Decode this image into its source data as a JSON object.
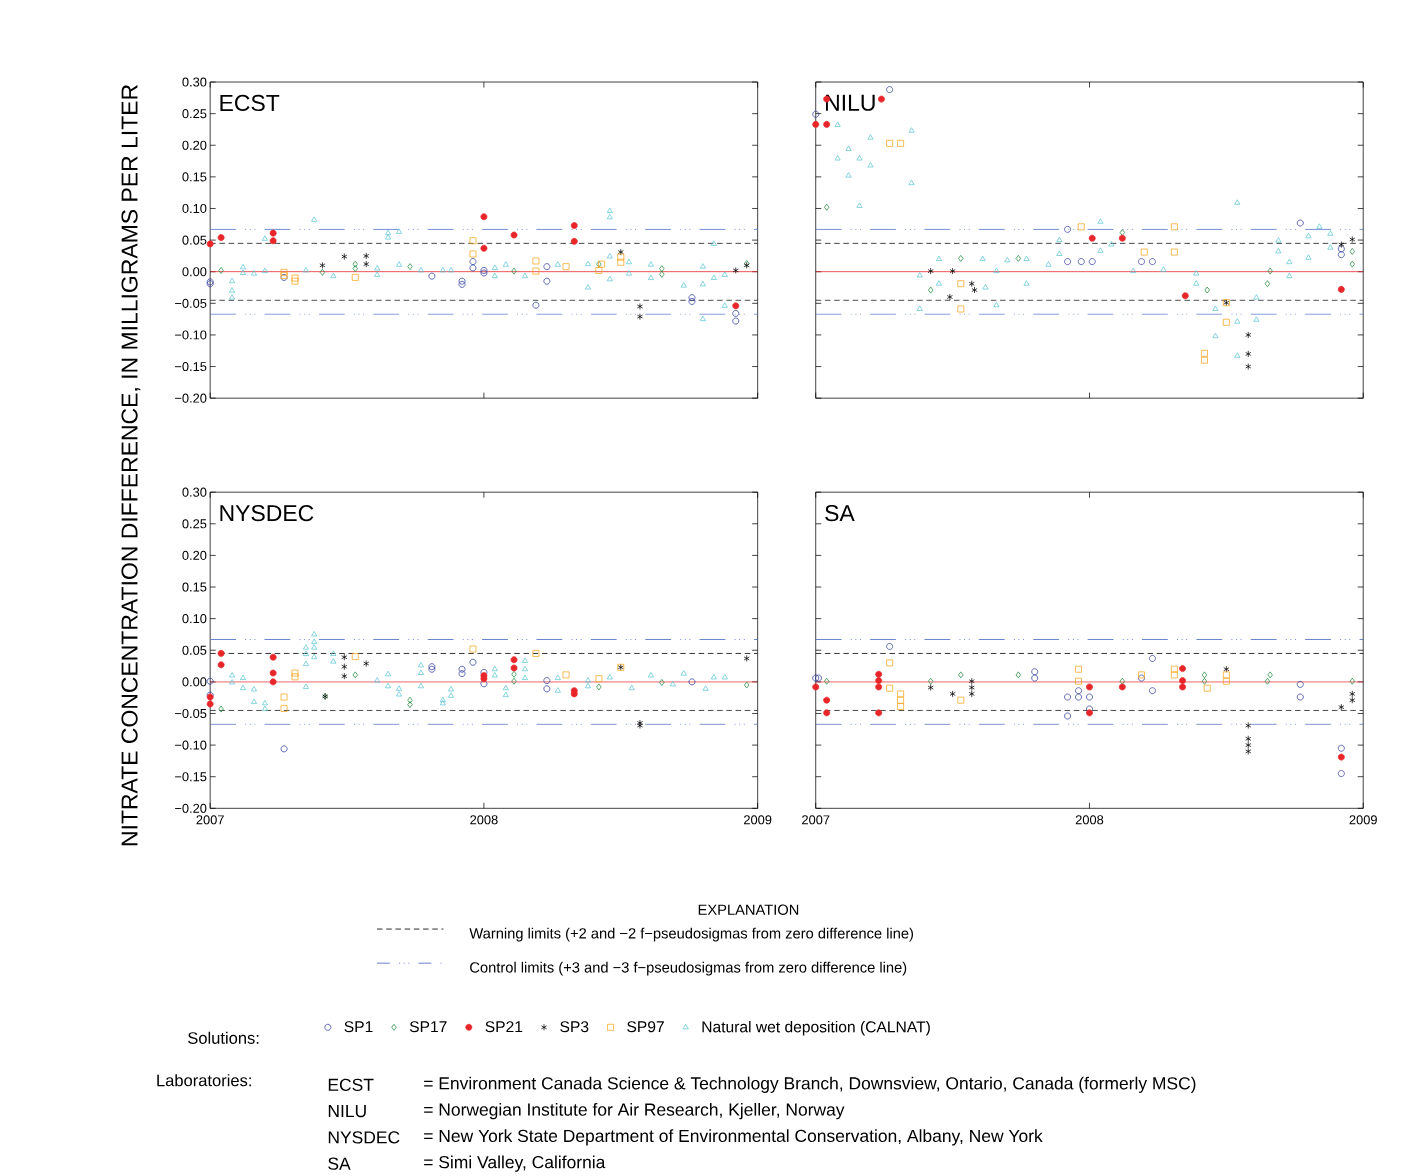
{
  "chart_data": [
    {
      "type": "scatter",
      "title": "ECST",
      "ylabel": "NITRATE CONCENTRATION DIFFERENCE, IN MILLIGRAMS PER LITER",
      "legend": "bottom",
      "legend_title": "Solutions:",
      "tick_labels": "y",
      "xlim": [
        2007,
        2009
      ],
      "xticks": [
        2007,
        2008,
        2009
      ],
      "ylim": [
        -0.2,
        0.3
      ],
      "yticks": [
        {
          "value": -0.2,
          "label": "−0.20"
        },
        {
          "value": -0.15,
          "label": "−0.15"
        },
        {
          "value": -0.1,
          "label": "−0.10"
        },
        {
          "value": -0.05,
          "label": "−0.05"
        },
        {
          "value": 0,
          "label": "0.00"
        },
        {
          "value": 0.05,
          "label": "0.05"
        },
        {
          "value": 0.1,
          "label": "0.10"
        },
        {
          "value": 0.15,
          "label": "0.15"
        },
        {
          "value": 0.2,
          "label": "0.20"
        },
        {
          "value": 0.25,
          "label": "0.25"
        },
        {
          "value": 0.3,
          "label": "0.30"
        }
      ],
      "ref_lines": [
        {
          "axis": "y",
          "value": 0,
          "color": "#e8262a",
          "line_style": "solid"
        },
        {
          "axis": "y",
          "value": 0.045,
          "color": "#000000",
          "line_style": "dashed"
        },
        {
          "axis": "y",
          "value": -0.045,
          "color": "#000000",
          "line_style": "dashed"
        },
        {
          "axis": "y",
          "value": 0.067,
          "color": "#4a6cc6",
          "line_style": "dashdotted"
        },
        {
          "axis": "y",
          "value": -0.067,
          "color": "#4a6cc6",
          "line_style": "dashdotted"
        }
      ],
      "annotations": [
        "EXPLANATION",
        "Warning limits (+2 and −2 f−pseudosigmas from zero difference line)",
        "Control limits (+3 and −3 f−pseudosigmas from zero difference line)",
        "Laboratories:",
        "ECST",
        "= Environment Canada Science & Technology Branch, Downsview, Ontario, Canada (formerly MSC)",
        "NILU",
        "= Norwegian Institute for Air Research, Kjeller, Norway",
        "NYSDEC",
        "= New York State Department of Environmental Conservation, Albany, New York",
        "SA",
        "= Simi Valley, California"
      ],
      "series": [
        {
          "name": "SP1",
          "color": "#2b3a9a",
          "marker": "circle",
          "x": [
            2007.0,
            2007.0,
            2007.27,
            2007.81,
            2007.92,
            2007.92,
            2007.96,
            2007.96,
            2008.0,
            2008.0,
            2008.19,
            2008.23,
            2008.23,
            2008.76,
            2008.76,
            2008.92,
            2008.92
          ],
          "values": [
            -0.016,
            -0.019,
            -0.009,
            -0.007,
            -0.015,
            -0.02,
            0.016,
            0.006,
            0.002,
            -0.002,
            -0.053,
            0.008,
            -0.015,
            -0.041,
            -0.047,
            -0.066,
            -0.078
          ]
        },
        {
          "name": "SP17",
          "color": "#1f8a3c",
          "marker": "diamond",
          "x": [
            2007.04,
            2007.41,
            2007.53,
            2007.53,
            2007.73,
            2008.11,
            2008.42,
            2008.65,
            2008.65,
            2008.96
          ],
          "values": [
            0.002,
            -0.001,
            0.012,
            0.005,
            0.008,
            0.001,
            0.012,
            0.005,
            -0.004,
            0.013
          ]
        },
        {
          "name": "SP21",
          "color": "#e8262a",
          "x": [
            2007.0,
            2007.04,
            2007.23,
            2007.23,
            2008.0,
            2008.0,
            2008.11,
            2008.33,
            2008.33,
            2008.92
          ],
          "values": [
            0.044,
            0.054,
            0.061,
            0.049,
            0.087,
            0.037,
            0.058,
            0.073,
            0.048,
            -0.054
          ]
        },
        {
          "name": "SP3",
          "color": "#000000",
          "marker": "cross",
          "x": [
            2007.41,
            2007.49,
            2007.57,
            2007.57,
            2008.5,
            2008.57,
            2008.57,
            2008.92,
            2008.96
          ],
          "values": [
            0.01,
            0.024,
            0.025,
            0.012,
            0.031,
            -0.055,
            -0.071,
            0.002,
            0.01
          ]
        },
        {
          "name": "SP97",
          "color": "#f5a31a",
          "marker": "square",
          "x": [
            2007.27,
            2007.27,
            2007.31,
            2007.31,
            2007.53,
            2007.96,
            2007.96,
            2008.19,
            2008.19,
            2008.3,
            2008.42,
            2008.43,
            2008.5,
            2008.5
          ],
          "values": [
            -0.001,
            -0.006,
            -0.01,
            -0.015,
            -0.009,
            0.049,
            0.028,
            0.017,
            0.001,
            0.008,
            0.002,
            0.012,
            0.023,
            0.015
          ]
        },
        {
          "name": "Natural wet deposition (CALNAT)",
          "color": "#5cc6d6",
          "marker": "triangle",
          "x": [
            2007.08,
            2007.08,
            2007.08,
            2007.12,
            2007.12,
            2007.16,
            2007.2,
            2007.2,
            2007.35,
            2007.38,
            2007.45,
            2007.61,
            2007.61,
            2007.65,
            2007.65,
            2007.69,
            2007.69,
            2007.77,
            2007.85,
            2007.88,
            2008.04,
            2008.04,
            2008.08,
            2008.15,
            2008.27,
            2008.38,
            2008.38,
            2008.46,
            2008.46,
            2008.46,
            2008.46,
            2008.53,
            2008.53,
            2008.61,
            2008.61,
            2008.73,
            2008.8,
            2008.8,
            2008.8,
            2008.84,
            2008.84,
            2008.88,
            2008.88
          ],
          "values": [
            -0.015,
            -0.03,
            -0.041,
            0.007,
            -0.002,
            -0.003,
            0.001,
            0.052,
            0.002,
            0.082,
            -0.007,
            0.005,
            -0.005,
            0.061,
            0.054,
            0.063,
            0.011,
            0.002,
            0.002,
            0.002,
            0.006,
            -0.007,
            0.011,
            -0.007,
            0.011,
            0.012,
            -0.025,
            0.096,
            0.086,
            -0.012,
            0.024,
            0.015,
            -0.003,
            0.011,
            -0.01,
            -0.022,
            0.008,
            -0.02,
            -0.075,
            0.044,
            -0.01,
            -0.054,
            -0.005
          ]
        }
      ]
    },
    {
      "type": "scatter",
      "title": "NILU",
      "tick_labels": false,
      "xlim": [
        2007,
        2009
      ],
      "xticks": [
        2007,
        2008,
        2009
      ],
      "ylim": [
        -0.2,
        0.3
      ],
      "yticks": [
        -0.2,
        -0.15,
        -0.1,
        -0.05,
        0,
        0.05,
        0.1,
        0.15,
        0.2,
        0.25,
        0.3
      ],
      "ref_lines": [
        {
          "axis": "y",
          "value": 0,
          "color": "#e8262a",
          "line_style": "solid"
        },
        {
          "axis": "y",
          "value": 0.045,
          "color": "#000000",
          "line_style": "dashed"
        },
        {
          "axis": "y",
          "value": -0.045,
          "color": "#000000",
          "line_style": "dashed"
        },
        {
          "axis": "y",
          "value": 0.067,
          "color": "#4a6cc6",
          "line_style": "dashdotted"
        },
        {
          "axis": "y",
          "value": -0.067,
          "color": "#4a6cc6",
          "line_style": "dashdotted"
        }
      ],
      "series": [
        {
          "color": "#2b3a9a",
          "marker": "circle",
          "x": [
            2007.0,
            2007.27,
            2007.92,
            2007.92,
            2007.97,
            2008.01,
            2008.19,
            2008.23,
            2008.77,
            2008.92,
            2008.92
          ],
          "values": [
            0.249,
            0.288,
            0.067,
            0.016,
            0.016,
            0.016,
            0.016,
            0.016,
            0.077,
            0.036,
            0.027
          ]
        },
        {
          "color": "#1f8a3c",
          "marker": "diamond",
          "x": [
            2007.04,
            2007.42,
            2007.53,
            2007.74,
            2008.12,
            2008.43,
            2008.66,
            2008.65,
            2008.96,
            2008.96
          ],
          "values": [
            0.102,
            -0.029,
            0.021,
            0.021,
            0.062,
            -0.029,
            0.001,
            -0.019,
            0.032,
            0.012
          ]
        },
        {
          "color": "#e8262a",
          "x": [
            2007.0,
            2007.04,
            2007.04,
            2007.24,
            2008.01,
            2008.12,
            2008.35,
            2008.92
          ],
          "values": [
            0.233,
            0.233,
            0.273,
            0.273,
            0.053,
            0.053,
            -0.038,
            -0.028
          ]
        },
        {
          "color": "#000000",
          "marker": "cross",
          "x": [
            2007.42,
            2007.5,
            2007.49,
            2007.57,
            2007.58,
            2008.5,
            2008.58,
            2008.58,
            2008.58,
            2008.92,
            2008.96
          ],
          "values": [
            0.001,
            0.001,
            -0.04,
            -0.019,
            -0.029,
            -0.049,
            -0.1,
            -0.13,
            -0.15,
            0.043,
            0.051
          ]
        },
        {
          "color": "#f5a31a",
          "marker": "square",
          "x": [
            2007.27,
            2007.31,
            2007.53,
            2007.53,
            2007.97,
            2008.2,
            2008.31,
            2008.31,
            2008.42,
            2008.42,
            2008.5,
            2008.5
          ],
          "values": [
            0.203,
            0.203,
            -0.019,
            -0.059,
            0.071,
            0.031,
            0.031,
            0.071,
            -0.129,
            -0.14,
            -0.08,
            -0.049
          ]
        },
        {
          "color": "#5cc6d6",
          "marker": "triangle",
          "x": [
            2007.08,
            2007.12,
            2007.08,
            2007.16,
            2007.12,
            2007.2,
            2007.2,
            2007.16,
            2007.35,
            2007.35,
            2007.38,
            2007.38,
            2007.45,
            2007.45,
            2007.61,
            2007.62,
            2007.66,
            2007.66,
            2007.7,
            2007.77,
            2007.77,
            2007.85,
            2007.89,
            2007.89,
            2008.04,
            2008.04,
            2008.08,
            2008.16,
            2008.27,
            2008.39,
            2008.39,
            2008.46,
            2008.46,
            2008.54,
            2008.54,
            2008.54,
            2008.61,
            2008.61,
            2008.69,
            2008.69,
            2008.73,
            2008.73,
            2008.8,
            2008.8,
            2008.84,
            2008.88,
            2008.88
          ],
          "values": [
            0.232,
            0.194,
            0.179,
            0.179,
            0.152,
            0.212,
            0.168,
            0.104,
            0.223,
            0.14,
            -0.006,
            -0.059,
            0.02,
            -0.019,
            0.02,
            -0.025,
            0.001,
            -0.053,
            0.018,
            0.02,
            -0.019,
            0.011,
            0.05,
            0.028,
            0.079,
            0.033,
            0.043,
            0.001,
            0.003,
            -0.003,
            -0.019,
            -0.059,
            -0.102,
            0.109,
            -0.079,
            -0.133,
            -0.041,
            -0.076,
            0.049,
            0.032,
            0.015,
            -0.007,
            0.056,
            0.022,
            0.071,
            0.06,
            0.038
          ]
        }
      ]
    },
    {
      "type": "scatter",
      "title": "NYSDEC",
      "xlim": [
        2007,
        2009
      ],
      "xticks": [
        2007,
        2008,
        2009
      ],
      "ylim": [
        -0.2,
        0.3
      ],
      "yticks": [
        {
          "value": -0.2,
          "label": "−0.20"
        },
        {
          "value": -0.15,
          "label": "−0.15"
        },
        {
          "value": -0.1,
          "label": "−0.10"
        },
        {
          "value": -0.05,
          "label": "−0.05"
        },
        {
          "value": 0,
          "label": "0.00"
        },
        {
          "value": 0.05,
          "label": "0.05"
        },
        {
          "value": 0.1,
          "label": "0.10"
        },
        {
          "value": 0.15,
          "label": "0.15"
        },
        {
          "value": 0.2,
          "label": "0.20"
        },
        {
          "value": 0.25,
          "label": "0.25"
        },
        {
          "value": 0.3,
          "label": "0.30"
        }
      ],
      "ref_lines": [
        {
          "axis": "y",
          "value": 0,
          "color": "#e8262a",
          "line_style": "solid"
        },
        {
          "axis": "y",
          "value": 0.045,
          "color": "#000000",
          "line_style": "dashed"
        },
        {
          "axis": "y",
          "value": -0.045,
          "color": "#000000",
          "line_style": "dashed"
        },
        {
          "axis": "y",
          "value": 0.067,
          "color": "#4a6cc6",
          "line_style": "dashdotted"
        },
        {
          "axis": "y",
          "value": -0.067,
          "color": "#4a6cc6",
          "line_style": "dashdotted"
        }
      ],
      "series": [
        {
          "color": "#2b3a9a",
          "marker": "circle",
          "x": [
            2007.0,
            2007.0,
            2007.27,
            2007.81,
            2007.81,
            2007.92,
            2007.92,
            2007.96,
            2008.0,
            2008.0,
            2008.23,
            2008.23,
            2008.76
          ],
          "values": [
            0.001,
            -0.021,
            -0.106,
            0.024,
            0.02,
            0.02,
            0.013,
            0.031,
            0.015,
            -0.003,
            0.002,
            -0.011,
            0.0
          ]
        },
        {
          "color": "#1f8a3c",
          "marker": "diamond",
          "x": [
            2007.04,
            2007.42,
            2007.53,
            2007.73,
            2007.73,
            2008.11,
            2008.11,
            2008.42,
            2008.65,
            2008.96
          ],
          "values": [
            -0.043,
            -0.023,
            0.011,
            -0.029,
            -0.036,
            0.012,
            0.001,
            -0.008,
            -0.001,
            -0.005
          ]
        },
        {
          "color": "#e8262a",
          "x": [
            2007.0,
            2007.0,
            2007.04,
            2007.04,
            2007.23,
            2007.23,
            2007.23,
            2008.0,
            2008.0,
            2008.11,
            2008.11,
            2008.33,
            2008.33
          ],
          "values": [
            -0.024,
            -0.035,
            0.045,
            0.027,
            0.039,
            0.014,
            0.0,
            0.01,
            0.005,
            0.035,
            0.022,
            -0.014,
            -0.019
          ]
        },
        {
          "color": "#000000",
          "marker": "cross",
          "x": [
            2007.42,
            2007.49,
            2007.49,
            2007.49,
            2007.57,
            2008.5,
            2008.57,
            2008.57,
            2008.96
          ],
          "values": [
            -0.023,
            0.039,
            0.024,
            0.009,
            0.029,
            0.023,
            -0.065,
            -0.069,
            0.037
          ]
        },
        {
          "color": "#f5a31a",
          "marker": "square",
          "x": [
            2007.27,
            2007.27,
            2007.31,
            2007.31,
            2007.53,
            2007.96,
            2008.19,
            2008.3,
            2008.42,
            2008.5
          ],
          "values": [
            -0.024,
            -0.042,
            0.014,
            0.008,
            0.04,
            0.052,
            0.045,
            0.011,
            0.005,
            0.023
          ]
        },
        {
          "color": "#5cc6d6",
          "marker": "triangle",
          "x": [
            2007.08,
            2007.08,
            2007.12,
            2007.12,
            2007.16,
            2007.16,
            2007.2,
            2007.2,
            2007.35,
            2007.35,
            2007.35,
            2007.35,
            2007.38,
            2007.38,
            2007.38,
            2007.38,
            2007.45,
            2007.45,
            2007.61,
            2007.65,
            2007.65,
            2007.69,
            2007.69,
            2007.77,
            2007.77,
            2007.77,
            2007.85,
            2007.85,
            2007.88,
            2007.88,
            2008.04,
            2008.04,
            2008.08,
            2008.08,
            2008.15,
            2008.15,
            2008.15,
            2008.27,
            2008.27,
            2008.38,
            2008.38,
            2008.46,
            2008.54,
            2008.61,
            2008.69,
            2008.73,
            2008.81,
            2008.84,
            2008.88
          ],
          "values": [
            0.01,
            -0.001,
            0.006,
            -0.01,
            -0.012,
            -0.032,
            -0.034,
            -0.043,
            0.054,
            0.044,
            0.028,
            -0.008,
            0.075,
            0.063,
            0.054,
            0.039,
            0.044,
            0.032,
            0.002,
            0.012,
            -0.007,
            -0.011,
            -0.02,
            0.026,
            0.014,
            -0.007,
            -0.029,
            -0.034,
            -0.012,
            -0.022,
            0.02,
            0.01,
            -0.01,
            -0.021,
            0.033,
            0.02,
            0.006,
            0.006,
            -0.014,
            0.002,
            -0.007,
            0.007,
            -0.01,
            0.01,
            -0.004,
            0.013,
            -0.011,
            0.007,
            0.007
          ]
        }
      ]
    },
    {
      "type": "scatter",
      "title": "SA",
      "tick_labels": "x",
      "xlim": [
        2007,
        2009
      ],
      "xticks": [
        2007,
        2008,
        2009
      ],
      "ylim": [
        -0.2,
        0.3
      ],
      "yticks": [
        -0.2,
        -0.15,
        -0.1,
        -0.05,
        0,
        0.05,
        0.1,
        0.15,
        0.2,
        0.25,
        0.3
      ],
      "ref_lines": [
        {
          "axis": "y",
          "value": 0,
          "color": "#e8262a",
          "line_style": "solid"
        },
        {
          "axis": "y",
          "value": 0.045,
          "color": "#000000",
          "line_style": "dashed"
        },
        {
          "axis": "y",
          "value": -0.045,
          "color": "#000000",
          "line_style": "dashed"
        },
        {
          "axis": "y",
          "value": 0.067,
          "color": "#4a6cc6",
          "line_style": "dashdotted"
        },
        {
          "axis": "y",
          "value": -0.067,
          "color": "#4a6cc6",
          "line_style": "dashdotted"
        }
      ],
      "series": [
        {
          "color": "#2b3a9a",
          "marker": "circle",
          "x": [
            2007.0,
            2007.01,
            2007.27,
            2007.8,
            2007.8,
            2007.92,
            2007.92,
            2007.96,
            2007.96,
            2008.0,
            2008.0,
            2008.19,
            2008.23,
            2008.23,
            2008.77,
            2008.77,
            2008.92,
            2008.92
          ],
          "values": [
            0.006,
            0.006,
            0.056,
            0.016,
            0.006,
            -0.024,
            -0.054,
            -0.014,
            -0.024,
            -0.024,
            -0.043,
            0.006,
            0.037,
            -0.014,
            -0.004,
            -0.024,
            -0.105,
            -0.145
          ]
        },
        {
          "color": "#1f8a3c",
          "marker": "diamond",
          "x": [
            2007.04,
            2007.42,
            2007.53,
            2007.74,
            2008.12,
            2008.42,
            2008.42,
            2008.66,
            2008.65,
            2008.96
          ],
          "values": [
            0.001,
            0.001,
            0.011,
            0.011,
            0.001,
            0.011,
            0.001,
            0.011,
            0.001,
            0.001
          ]
        },
        {
          "color": "#e8262a",
          "x": [
            2007.0,
            2007.04,
            2007.04,
            2007.23,
            2007.23,
            2007.23,
            2007.23,
            2008.0,
            2008.0,
            2008.12,
            2008.34,
            2008.34,
            2008.34,
            2008.92
          ],
          "values": [
            -0.008,
            -0.029,
            -0.049,
            0.012,
            0.002,
            -0.008,
            -0.049,
            -0.008,
            -0.049,
            -0.008,
            0.021,
            0.002,
            -0.008,
            -0.119
          ]
        },
        {
          "color": "#000000",
          "marker": "cross",
          "x": [
            2007.42,
            2007.5,
            2007.57,
            2007.57,
            2007.57,
            2008.5,
            2008.58,
            2008.58,
            2008.58,
            2008.58,
            2008.92,
            2008.96,
            2008.96
          ],
          "values": [
            -0.009,
            -0.019,
            0.001,
            -0.009,
            -0.019,
            0.02,
            -0.069,
            -0.09,
            -0.1,
            -0.11,
            -0.04,
            -0.019,
            -0.029
          ]
        },
        {
          "color": "#f5a31a",
          "marker": "square",
          "x": [
            2007.27,
            2007.27,
            2007.31,
            2007.31,
            2007.31,
            2007.53,
            2007.96,
            2007.96,
            2008.19,
            2008.31,
            2008.31,
            2008.43,
            2008.5,
            2008.5
          ],
          "values": [
            0.03,
            -0.01,
            -0.019,
            -0.029,
            -0.039,
            -0.029,
            0.02,
            0.001,
            0.011,
            0.02,
            0.011,
            -0.01,
            0.011,
            0.001
          ]
        }
      ]
    }
  ]
}
